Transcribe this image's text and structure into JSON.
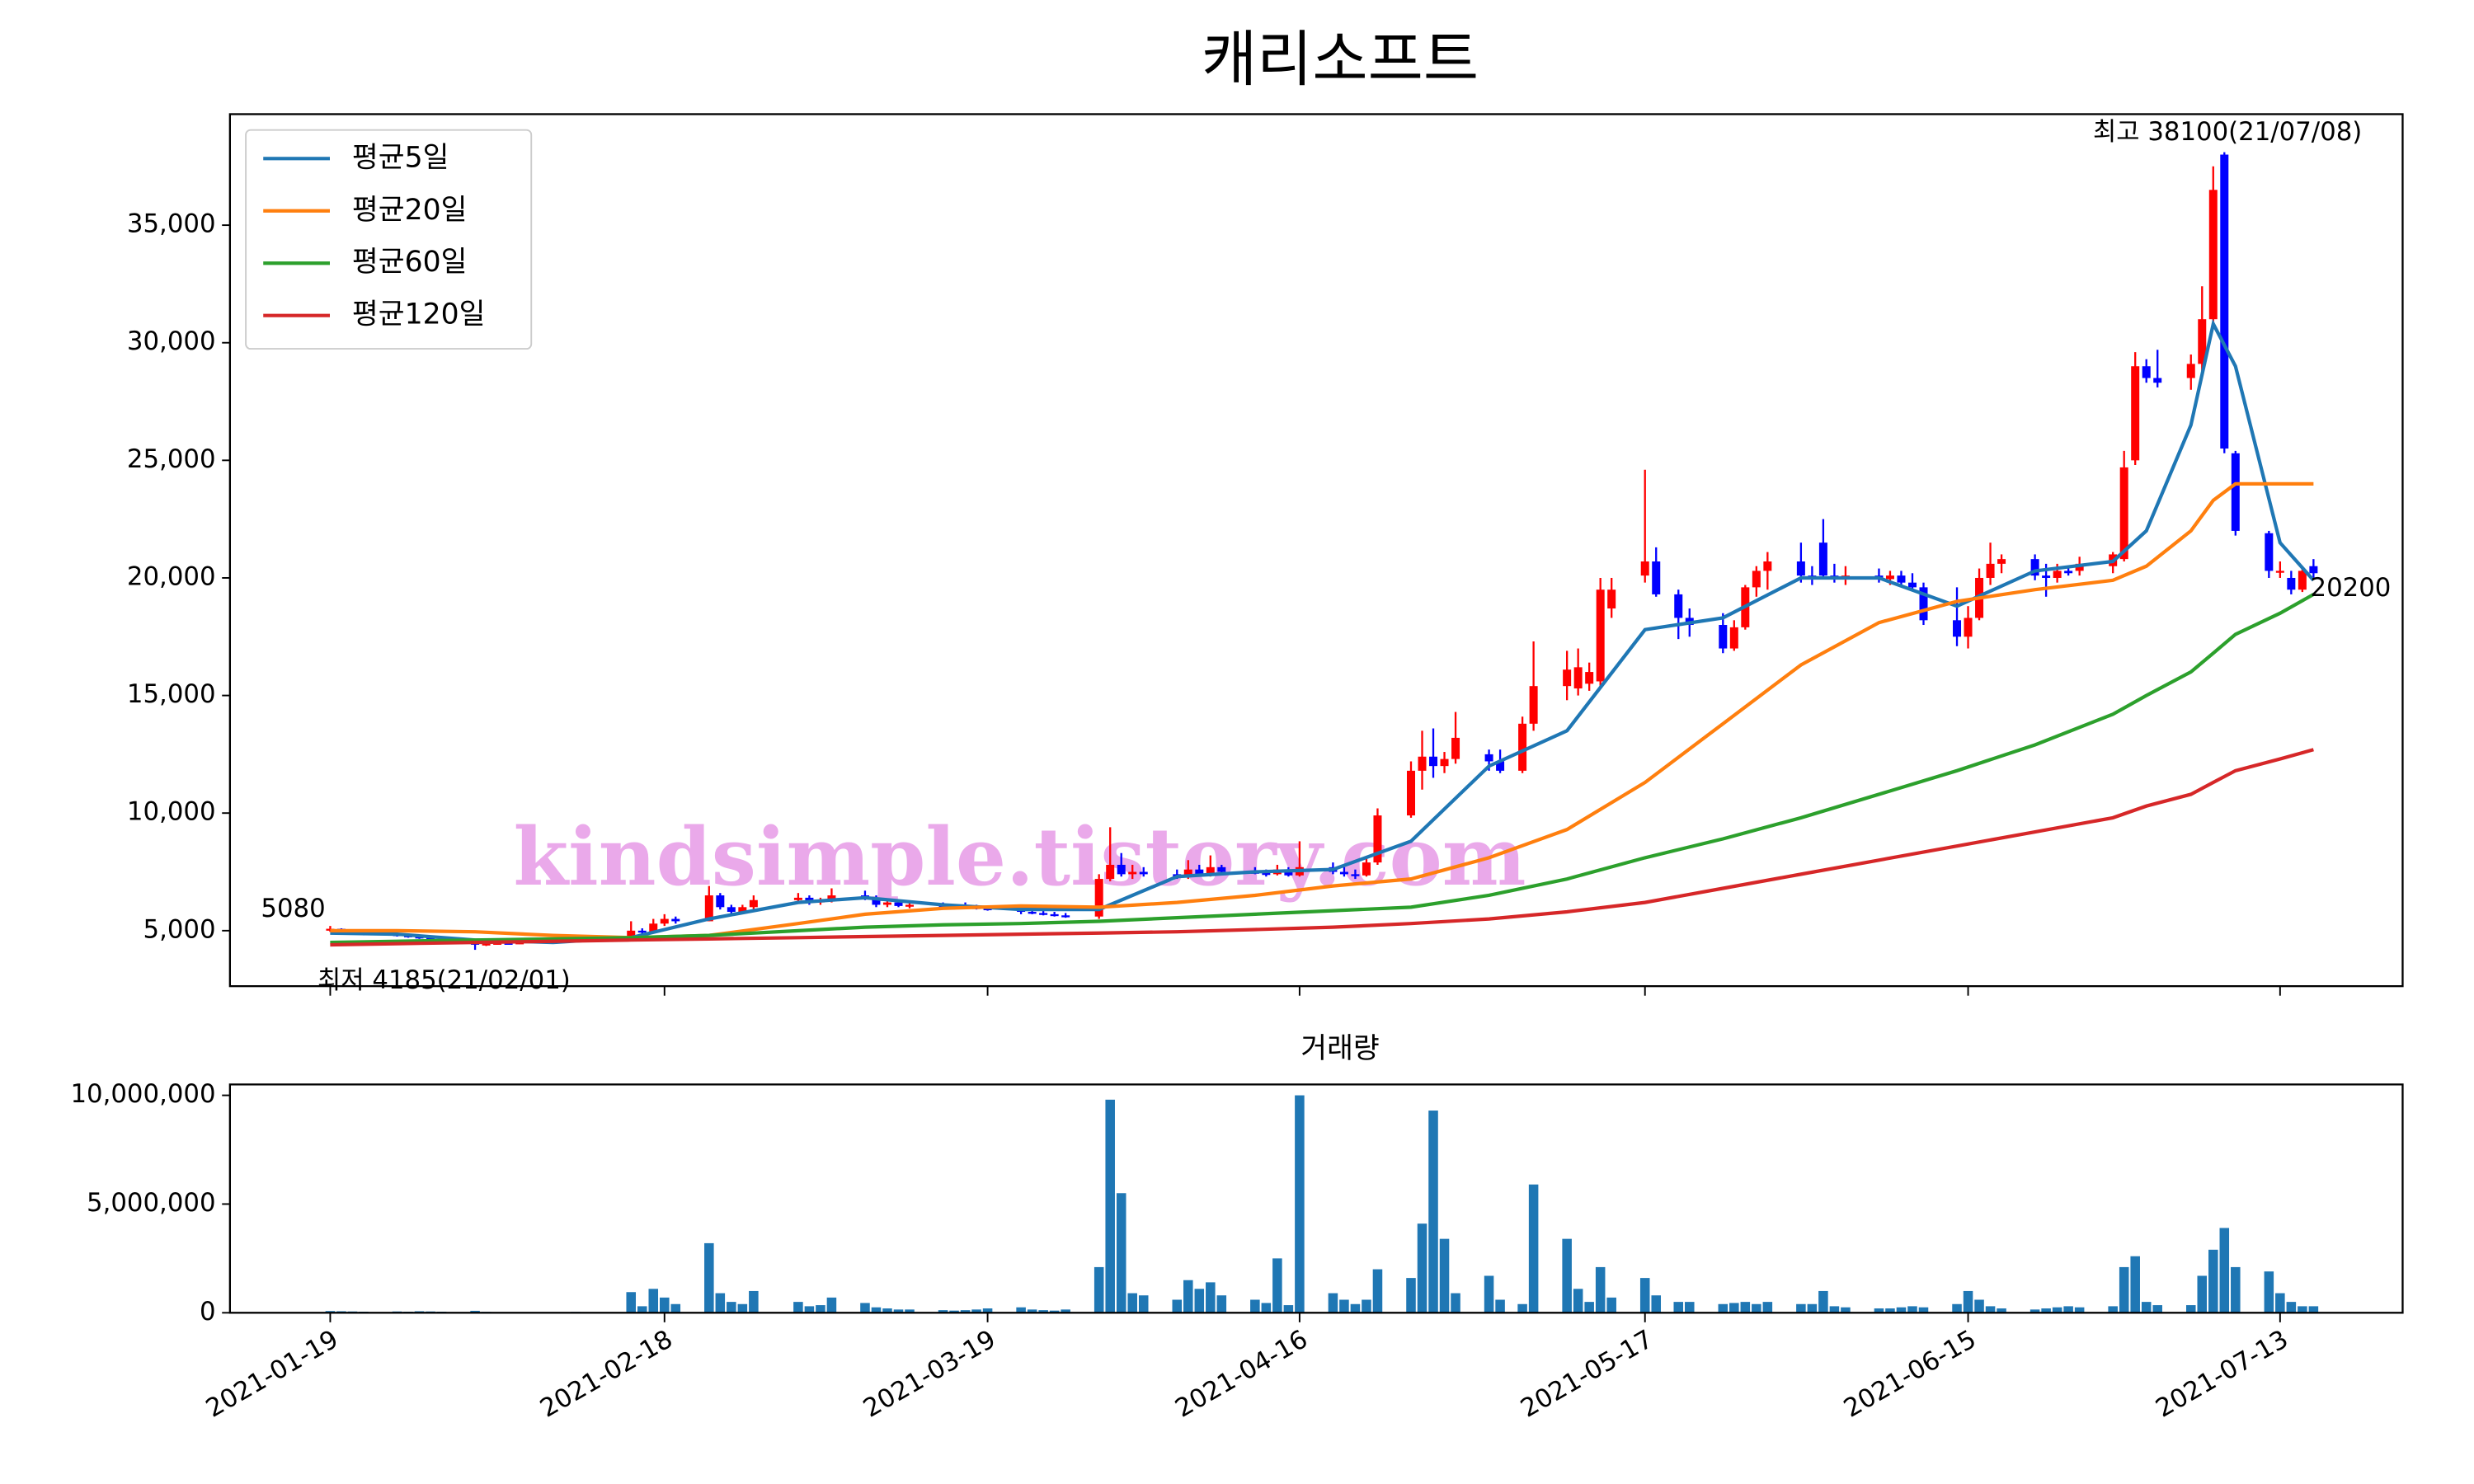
{
  "chart_data": {
    "type": "candlestick",
    "title": "캐리소프트",
    "watermark": "kindsimple.tistory.com",
    "start_label": "5080",
    "low_label": "최저 4185(21/02/01)",
    "high_label": "최고 38100(21/07/08)",
    "end_label": "20200",
    "up_color": "#ff0000",
    "down_color": "#0000ff",
    "xlim": [
      "2021-01-10",
      "2021-07-24"
    ],
    "xticks": [
      "2021-01-19",
      "2021-02-18",
      "2021-03-19",
      "2021-04-16",
      "2021-05-17",
      "2021-06-15",
      "2021-07-13"
    ],
    "ylim": [
      2640,
      39720
    ],
    "yticks": [
      {
        "value": 5000,
        "label": "5,000"
      },
      {
        "value": 10000,
        "label": "10,000"
      },
      {
        "value": 15000,
        "label": "15,000"
      },
      {
        "value": 20000,
        "label": "20,000"
      },
      {
        "value": 25000,
        "label": "25,000"
      },
      {
        "value": 30000,
        "label": "30,000"
      },
      {
        "value": 35000,
        "label": "35,000"
      }
    ],
    "legend": "upper left",
    "candles": {
      "x": [
        "2021-01-19",
        "2021-01-20",
        "2021-01-21",
        "2021-01-22",
        "2021-01-25",
        "2021-01-26",
        "2021-01-27",
        "2021-01-28",
        "2021-01-29",
        "2021-02-01",
        "2021-02-02",
        "2021-02-03",
        "2021-02-04",
        "2021-02-05",
        "2021-02-08",
        "2021-02-09",
        "2021-02-10",
        "2021-02-15",
        "2021-02-16",
        "2021-02-17",
        "2021-02-18",
        "2021-02-19",
        "2021-02-22",
        "2021-02-23",
        "2021-02-24",
        "2021-02-25",
        "2021-02-26",
        "2021-03-02",
        "2021-03-03",
        "2021-03-04",
        "2021-03-05",
        "2021-03-08",
        "2021-03-09",
        "2021-03-10",
        "2021-03-11",
        "2021-03-12",
        "2021-03-15",
        "2021-03-16",
        "2021-03-17",
        "2021-03-18",
        "2021-03-19",
        "2021-03-22",
        "2021-03-23",
        "2021-03-24",
        "2021-03-25",
        "2021-03-26",
        "2021-03-29",
        "2021-03-30",
        "2021-03-31",
        "2021-04-01",
        "2021-04-02",
        "2021-04-05",
        "2021-04-06",
        "2021-04-07",
        "2021-04-08",
        "2021-04-09",
        "2021-04-12",
        "2021-04-13",
        "2021-04-14",
        "2021-04-15",
        "2021-04-16",
        "2021-04-19",
        "2021-04-20",
        "2021-04-21",
        "2021-04-22",
        "2021-04-23",
        "2021-04-26",
        "2021-04-27",
        "2021-04-28",
        "2021-04-29",
        "2021-04-30",
        "2021-05-03",
        "2021-05-04",
        "2021-05-06",
        "2021-05-07",
        "2021-05-10",
        "2021-05-11",
        "2021-05-12",
        "2021-05-13",
        "2021-05-14",
        "2021-05-17",
        "2021-05-18",
        "2021-05-20",
        "2021-05-21",
        "2021-05-24",
        "2021-05-25",
        "2021-05-26",
        "2021-05-27",
        "2021-05-28",
        "2021-05-31",
        "2021-06-01",
        "2021-06-02",
        "2021-06-03",
        "2021-06-04",
        "2021-06-07",
        "2021-06-08",
        "2021-06-09",
        "2021-06-10",
        "2021-06-11",
        "2021-06-14",
        "2021-06-15",
        "2021-06-16",
        "2021-06-17",
        "2021-06-18",
        "2021-06-21",
        "2021-06-22",
        "2021-06-23",
        "2021-06-24",
        "2021-06-25",
        "2021-06-28",
        "2021-06-29",
        "2021-06-30",
        "2021-07-01",
        "2021-07-02",
        "2021-07-05",
        "2021-07-06",
        "2021-07-07",
        "2021-07-08",
        "2021-07-09",
        "2021-07-12",
        "2021-07-13",
        "2021-07-14",
        "2021-07-15",
        "2021-07-16"
      ],
      "open": [
        5000,
        5080,
        4950,
        4900,
        4850,
        4800,
        4750,
        4700,
        4600,
        4500,
        4400,
        4450,
        4480,
        4470,
        4500,
        4520,
        4560,
        4650,
        5000,
        4950,
        5300,
        5500,
        5400,
        6500,
        6000,
        5800,
        6000,
        6300,
        6400,
        6200,
        6300,
        6500,
        6400,
        6100,
        6200,
        6050,
        6100,
        5950,
        6050,
        6000,
        5950,
        5900,
        5800,
        5750,
        5700,
        5650,
        5600,
        7200,
        7800,
        7400,
        7500,
        7400,
        7300,
        7600,
        7400,
        7700,
        7500,
        7450,
        7400,
        7600,
        7350,
        7700,
        7500,
        7400,
        7350,
        7900,
        9900,
        11800,
        12400,
        12000,
        12300,
        12500,
        12200,
        11800,
        13800,
        15400,
        15300,
        15500,
        15600,
        18700,
        20100,
        20700,
        19300,
        18300,
        18000,
        17000,
        17900,
        19600,
        20300,
        20700,
        20100,
        21500,
        20100,
        20000,
        20100,
        19950,
        20100,
        19800,
        19600,
        18200,
        17500,
        18300,
        20000,
        20600,
        20800,
        20100,
        20000,
        20300,
        20300,
        20500,
        20800,
        25000,
        29000,
        28500,
        28500,
        29100,
        31000,
        38000,
        25300,
        21900,
        20300,
        20000,
        19500,
        20500
      ],
      "high": [
        5200,
        5100,
        5000,
        4950,
        4900,
        4850,
        4800,
        4750,
        4650,
        4550,
        4500,
        4500,
        4520,
        4550,
        4560,
        4600,
        4700,
        5400,
        5100,
        5500,
        5700,
        5600,
        6900,
        6600,
        6100,
        6100,
        6500,
        6600,
        6500,
        6400,
        6800,
        6700,
        6500,
        6300,
        6300,
        6200,
        6200,
        6100,
        6200,
        6100,
        6050,
        6000,
        5900,
        5850,
        5800,
        5750,
        7400,
        9400,
        8300,
        7800,
        7700,
        7600,
        8000,
        7800,
        8200,
        7800,
        7700,
        7600,
        7800,
        7700,
        8800,
        7900,
        7700,
        7600,
        8100,
        10200,
        12200,
        13500,
        13600,
        12600,
        14300,
        12700,
        12700,
        14100,
        17300,
        16900,
        17000,
        16400,
        20000,
        20000,
        24600,
        21300,
        19500,
        18700,
        18500,
        18200,
        19700,
        20500,
        21100,
        21500,
        20500,
        22500,
        20600,
        20500,
        20400,
        20300,
        20300,
        20200,
        19800,
        19600,
        18800,
        20400,
        21500,
        21000,
        21000,
        20600,
        20600,
        20500,
        20900,
        21100,
        25400,
        29600,
        29300,
        29700,
        29500,
        32400,
        37500,
        38100,
        25400,
        22000,
        20700,
        20300,
        20500,
        20800
      ],
      "low": [
        4950,
        4900,
        4850,
        4800,
        4750,
        4700,
        4650,
        4550,
        4450,
        4185,
        4350,
        4400,
        4420,
        4430,
        4450,
        4480,
        4500,
        4600,
        4850,
        4900,
        5200,
        5300,
        5400,
        5900,
        5700,
        5700,
        5900,
        6200,
        6100,
        6100,
        6200,
        6300,
        6000,
        6000,
        6000,
        5950,
        5900,
        5900,
        5950,
        5900,
        5850,
        5700,
        5700,
        5650,
        5600,
        5550,
        5500,
        7100,
        7300,
        7200,
        7300,
        7200,
        7200,
        7300,
        7300,
        7400,
        7400,
        7300,
        7350,
        7300,
        7300,
        7400,
        7300,
        7200,
        7300,
        7800,
        9800,
        11000,
        11500,
        11700,
        12100,
        11800,
        11700,
        11700,
        13500,
        14800,
        15000,
        15200,
        15300,
        18300,
        19800,
        19200,
        17400,
        17500,
        16800,
        16900,
        17800,
        19200,
        19500,
        19800,
        19700,
        20000,
        19800,
        19700,
        19800,
        19700,
        19700,
        19500,
        18000,
        17100,
        17000,
        18200,
        19700,
        20200,
        19900,
        19200,
        19800,
        20100,
        20100,
        20200,
        20700,
        24800,
        28300,
        28100,
        28000,
        28800,
        30900,
        25300,
        21800,
        20000,
        20000,
        19300,
        19400,
        20000
      ],
      "close": [
        5080,
        4950,
        4900,
        4850,
        4800,
        4750,
        4700,
        4600,
        4500,
        4400,
        4450,
        4480,
        4470,
        4500,
        4520,
        4560,
        4650,
        5000,
        4950,
        5300,
        5500,
        5400,
        6500,
        6000,
        5800,
        6000,
        6300,
        6400,
        6200,
        6300,
        6500,
        6400,
        6100,
        6200,
        6050,
        6100,
        5950,
        6050,
        6000,
        5950,
        5900,
        5800,
        5750,
        5700,
        5650,
        5600,
        7200,
        7800,
        7400,
        7500,
        7400,
        7300,
        7600,
        7400,
        7700,
        7500,
        7450,
        7400,
        7600,
        7350,
        7700,
        7500,
        7400,
        7350,
        7900,
        9900,
        11800,
        12400,
        12000,
        12300,
        13200,
        12200,
        11800,
        13800,
        15400,
        16100,
        16200,
        16000,
        19500,
        19500,
        20700,
        19300,
        18300,
        18000,
        17000,
        17900,
        19600,
        20300,
        20700,
        20100,
        20000,
        20100,
        20000,
        20100,
        19950,
        20100,
        19800,
        19600,
        18200,
        17500,
        18300,
        20000,
        20600,
        20800,
        20100,
        20000,
        20300,
        20200,
        20600,
        21000,
        24700,
        29000,
        28500,
        28300,
        29100,
        31000,
        36500,
        25500,
        22000,
        20300,
        20300,
        19500,
        20300,
        20200
      ]
    },
    "series": [
      {
        "name": "평균5일",
        "color": "#1f77b4",
        "values": [
          4900,
          4850,
          4600,
          4500,
          4700,
          5500,
          6200,
          6400,
          6100,
          5900,
          5900,
          7300,
          7500,
          7600,
          8800,
          12000,
          13500,
          17800,
          18300,
          20000,
          20000,
          18800,
          20300,
          20700,
          22000,
          26500,
          30800,
          29000,
          21500,
          19900
        ]
      },
      {
        "name": "평균20일",
        "color": "#ff7f0e",
        "values": [
          5000,
          5000,
          4950,
          4800,
          4700,
          4800,
          5300,
          5700,
          5950,
          6050,
          6000,
          6200,
          6500,
          6900,
          7200,
          8100,
          9300,
          11300,
          13800,
          16300,
          18100,
          19000,
          19500,
          19900,
          20500,
          22000,
          23300,
          24000,
          24000,
          24000
        ]
      },
      {
        "name": "평균60일",
        "color": "#2ca02c",
        "values": [
          4500,
          4550,
          4600,
          4650,
          4700,
          4800,
          5000,
          5150,
          5250,
          5300,
          5400,
          5550,
          5700,
          5850,
          6000,
          6500,
          7200,
          8100,
          8900,
          9800,
          10800,
          11800,
          12900,
          14200,
          15000,
          16000,
          16800,
          17600,
          18500,
          19300
        ]
      },
      {
        "name": "평균120일",
        "color": "#d62728",
        "values": [
          4400,
          4450,
          4500,
          4550,
          4600,
          4650,
          4700,
          4750,
          4800,
          4850,
          4900,
          4950,
          5050,
          5150,
          5300,
          5500,
          5800,
          6200,
          6800,
          7400,
          8000,
          8600,
          9200,
          9800,
          10300,
          10800,
          11300,
          11800,
          12300,
          12700
        ]
      }
    ],
    "ma_x": [
      "2021-01-19",
      "2021-01-25",
      "2021-02-01",
      "2021-02-08",
      "2021-02-15",
      "2021-02-22",
      "2021-03-02",
      "2021-03-08",
      "2021-03-15",
      "2021-03-22",
      "2021-03-29",
      "2021-04-05",
      "2021-04-12",
      "2021-04-19",
      "2021-04-26",
      "2021-05-03",
      "2021-05-10",
      "2021-05-17",
      "2021-05-24",
      "2021-05-31",
      "2021-06-07",
      "2021-06-14",
      "2021-06-21",
      "2021-06-28",
      "2021-07-01",
      "2021-07-05",
      "2021-07-07",
      "2021-07-09",
      "2021-07-13",
      "2021-07-16"
    ],
    "volume": {
      "title": "거래량",
      "color": "#1f77b4",
      "ylim": [
        0,
        10500000
      ],
      "yticks": [
        0,
        {
          "value": 5000000,
          "label": "5,000,000"
        },
        {
          "value": 10000000,
          "label": "10,000,000"
        }
      ],
      "values": [
        80000,
        70000,
        60000,
        50000,
        60000,
        50000,
        70000,
        60000,
        50000,
        90000,
        40000,
        30000,
        30000,
        30000,
        30000,
        30000,
        40000,
        950000,
        300000,
        1100000,
        700000,
        400000,
        3200000,
        900000,
        500000,
        400000,
        1000000,
        500000,
        300000,
        350000,
        700000,
        450000,
        250000,
        200000,
        150000,
        150000,
        120000,
        100000,
        120000,
        150000,
        200000,
        250000,
        150000,
        120000,
        100000,
        150000,
        2100000,
        9800000,
        5500000,
        900000,
        800000,
        600000,
        1500000,
        1100000,
        1400000,
        800000,
        600000,
        450000,
        2500000,
        350000,
        10000000,
        900000,
        600000,
        400000,
        600000,
        2000000,
        1600000,
        4100000,
        9300000,
        3400000,
        900000,
        1700000,
        600000,
        400000,
        5900000,
        3400000,
        1100000,
        500000,
        2100000,
        700000,
        1600000,
        800000,
        500000,
        500000,
        400000,
        450000,
        500000,
        400000,
        500000,
        400000,
        400000,
        1000000,
        300000,
        250000,
        200000,
        200000,
        250000,
        300000,
        250000,
        400000,
        1000000,
        600000,
        300000,
        200000,
        150000,
        200000,
        250000,
        300000,
        250000,
        300000,
        2100000,
        2600000,
        500000,
        350000,
        350000,
        1700000,
        2900000,
        3900000,
        2100000,
        1900000,
        900000,
        500000,
        300000,
        300000
      ]
    }
  }
}
